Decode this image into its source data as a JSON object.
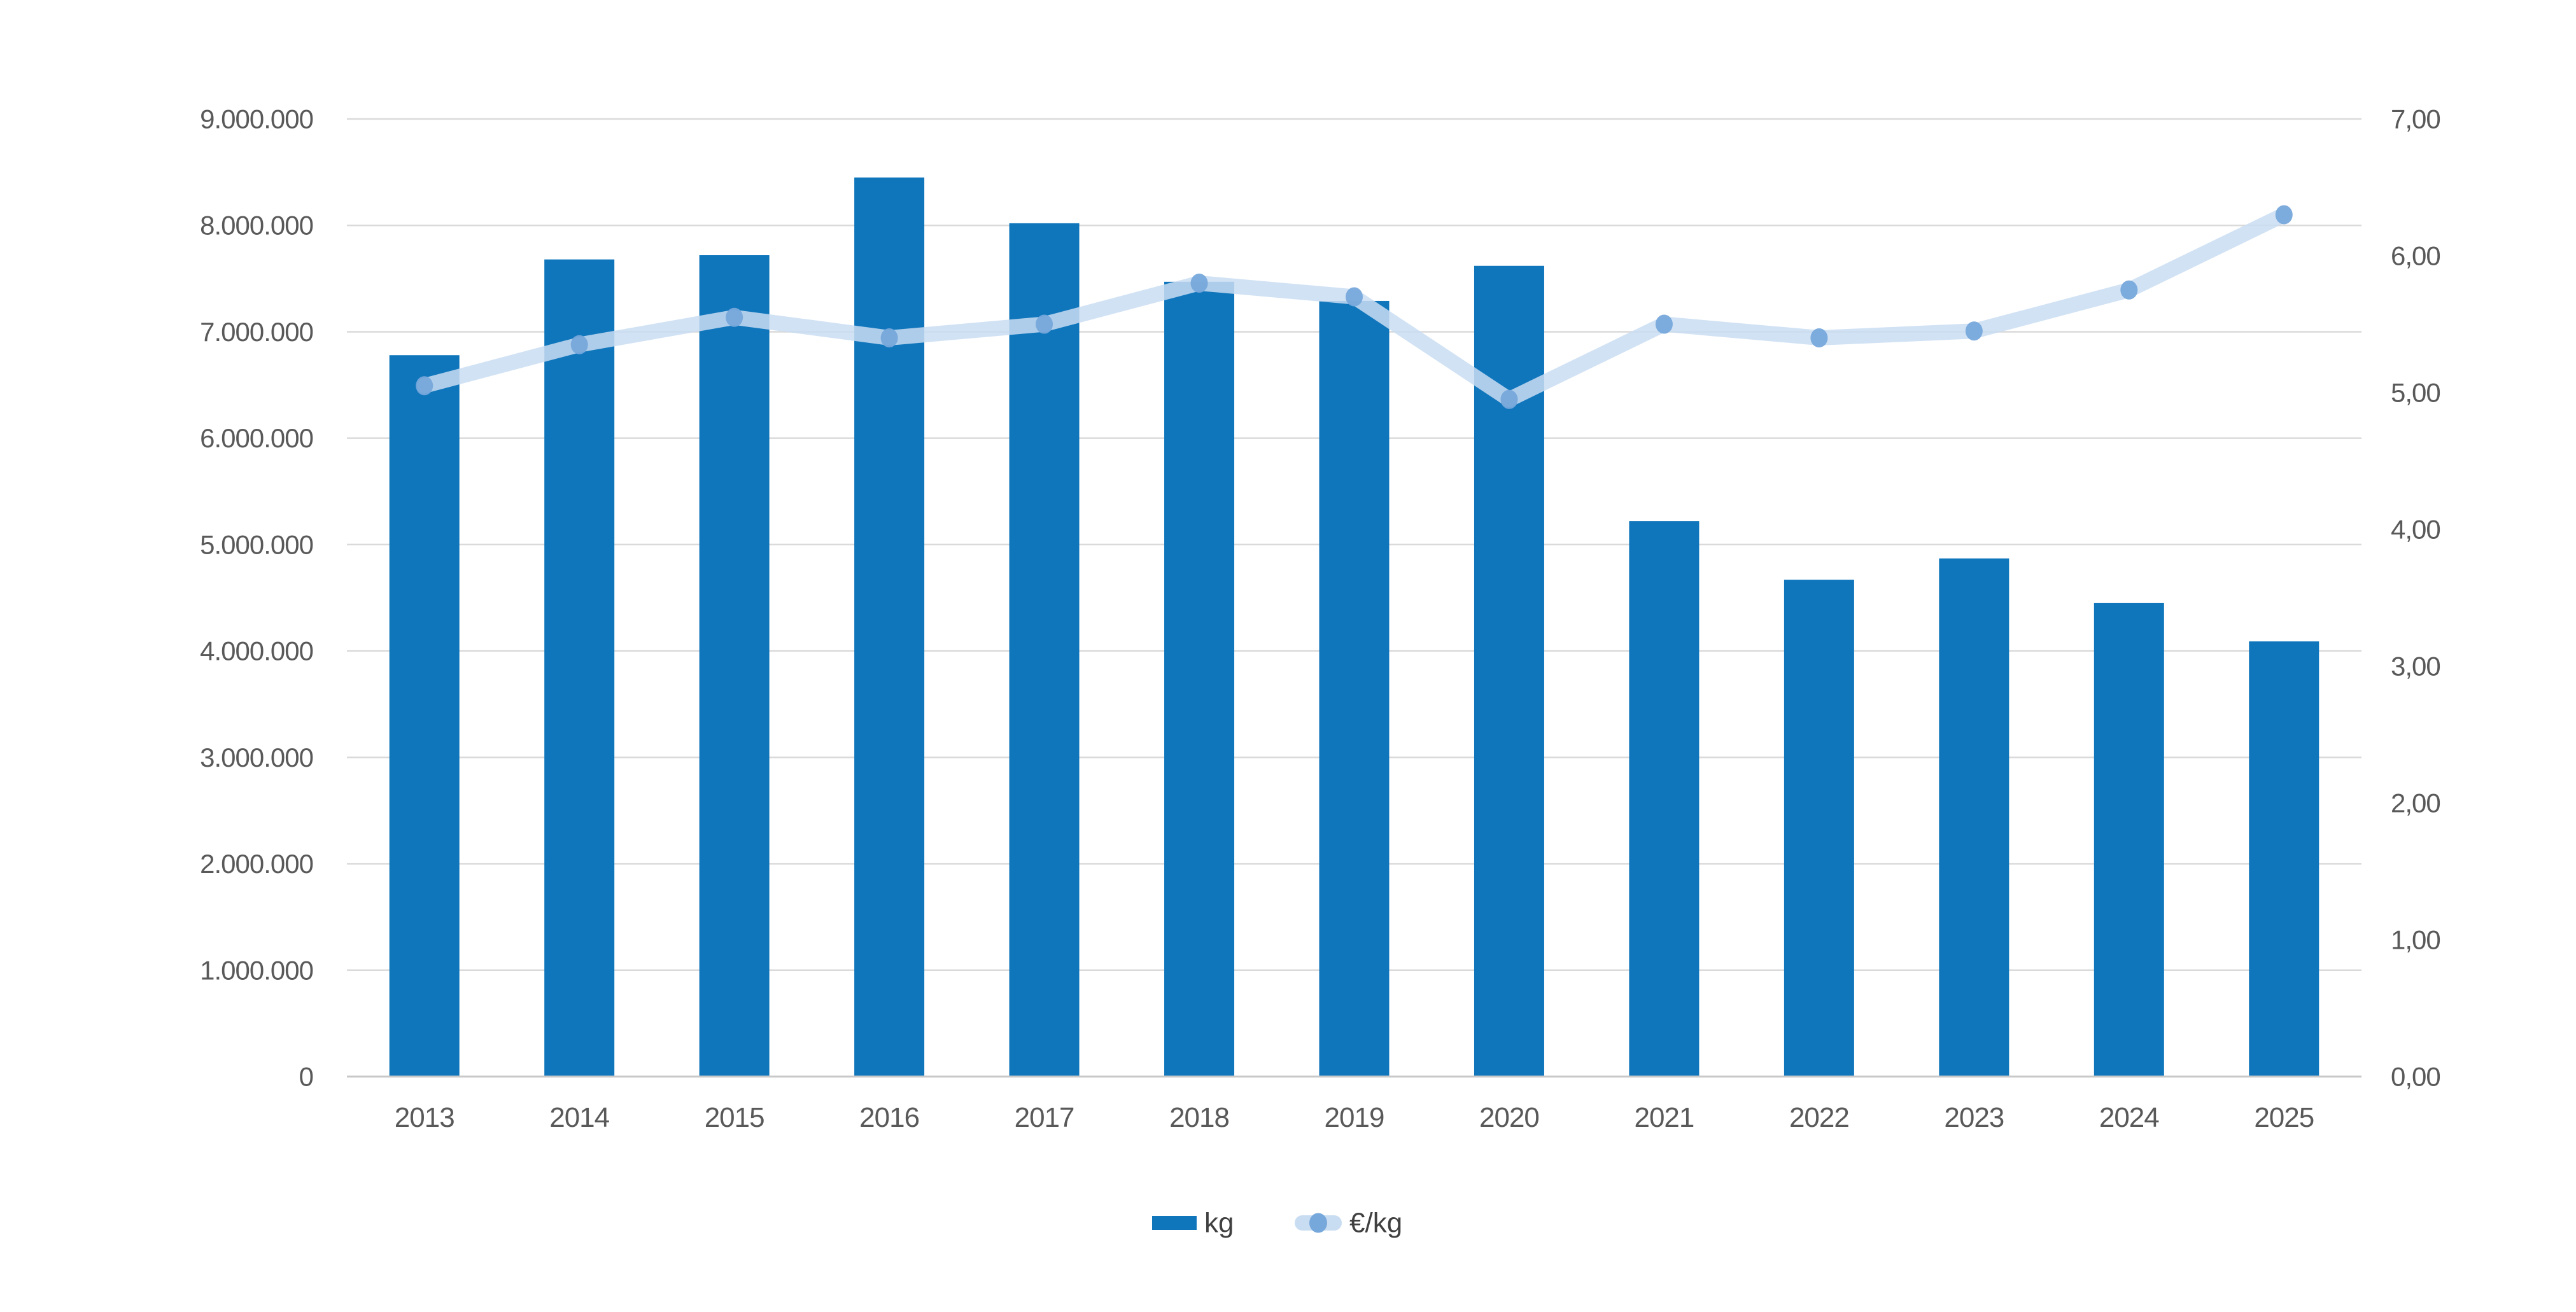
{
  "chart_data": {
    "type": "bar",
    "subtype": "combo-bar-line",
    "title": "",
    "categories": [
      "2013",
      "2014",
      "2015",
      "2016",
      "2017",
      "2018",
      "2019",
      "2020",
      "2021",
      "2022",
      "2023",
      "2024",
      "2025"
    ],
    "series": [
      {
        "name": "kg",
        "type": "bar",
        "axis": "left",
        "color": "#1076BC",
        "values": [
          6780000,
          7680000,
          7720000,
          8450000,
          8020000,
          7470000,
          7290000,
          7620000,
          5220000,
          4670000,
          4870000,
          4450000,
          4090000
        ]
      },
      {
        "name": "€/kg",
        "type": "line",
        "axis": "right",
        "line_color": "#C9DDF2",
        "marker_color": "#77A8DB",
        "values": [
          5.05,
          5.35,
          5.55,
          5.4,
          5.5,
          5.8,
          5.7,
          4.95,
          5.5,
          5.4,
          5.45,
          5.75,
          6.3
        ]
      }
    ],
    "left_axis": {
      "min": 0,
      "max": 9000000,
      "step": 1000000,
      "tick_labels": [
        "0",
        "1.000.000",
        "2.000.000",
        "3.000.000",
        "4.000.000",
        "5.000.000",
        "6.000.000",
        "7.000.000",
        "8.000.000",
        "9.000.000"
      ]
    },
    "right_axis": {
      "min": 0,
      "max": 7,
      "step": 1,
      "tick_labels": [
        "0,00",
        "1,00",
        "2,00",
        "3,00",
        "4,00",
        "5,00",
        "6,00",
        "7,00"
      ]
    },
    "grid": true,
    "gridline_color": "#DADADA",
    "axisline_color": "#C8C8C8",
    "tick_text_color": "#595959",
    "legend_text_color": "#404040",
    "legend_position": "bottom",
    "legend": [
      {
        "label": "kg"
      },
      {
        "label": "€/kg"
      }
    ]
  }
}
